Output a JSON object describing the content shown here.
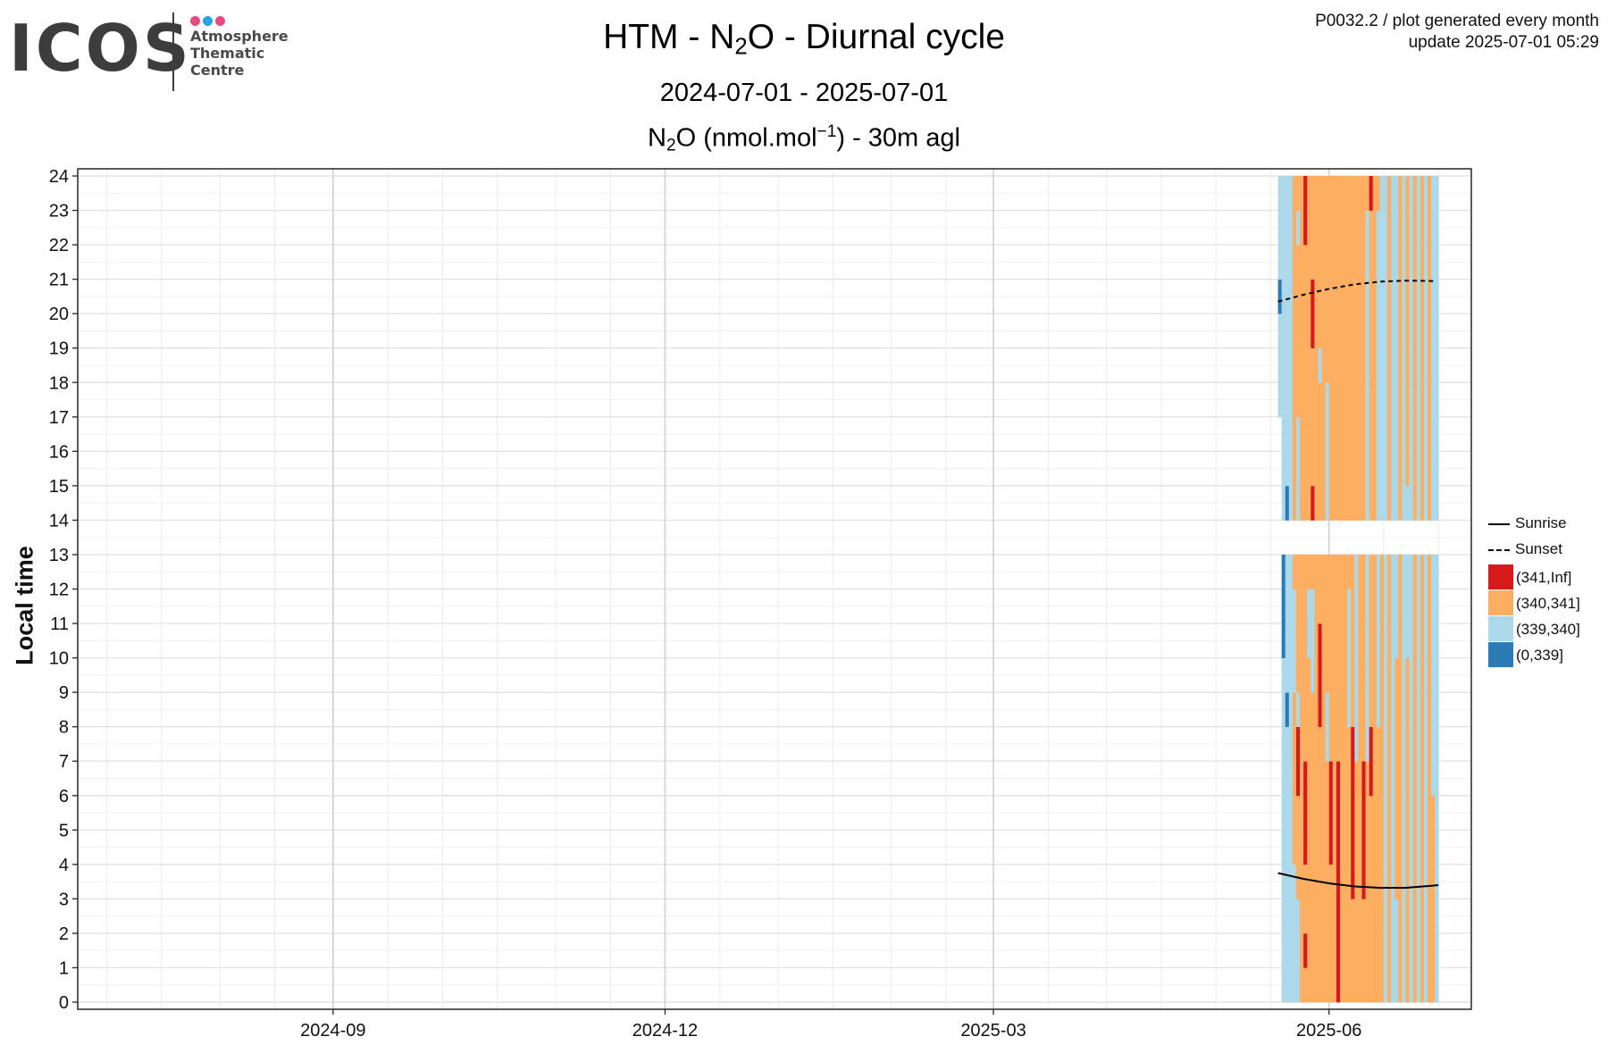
{
  "logo": {
    "wordmark": "ICOS",
    "subtitle": [
      "Atmosphere",
      "Thematic",
      "Centre"
    ],
    "dot_colors": [
      "#e84a7f",
      "#2aa3e0",
      "#e84a7f"
    ]
  },
  "meta": {
    "line1": "P0032.2 / plot generated every month",
    "line2": "update  2025-07-01 05:29"
  },
  "chart_data": {
    "type": "heatmap",
    "title": {
      "pre": "HTM - N",
      "sub": "2",
      "post": "O - Diurnal cycle"
    },
    "subtitle": "2024-07-01 - 2025-07-01",
    "panel_title": {
      "pre": "N",
      "sub": "2",
      "mid": "O (nmol.mol",
      "sup": "−1",
      "post": ") - 30m agl"
    },
    "ylabel": "Local time",
    "xlabel": "",
    "y_range": [
      0,
      24
    ],
    "y_ticks": [
      "0",
      "1",
      "2",
      "3",
      "4",
      "5",
      "6",
      "7",
      "8",
      "9",
      "10",
      "11",
      "12",
      "13",
      "14",
      "15",
      "16",
      "17",
      "18",
      "19",
      "20",
      "21",
      "22",
      "23",
      "24"
    ],
    "x_range": [
      "2024-06-23",
      "2025-07-10"
    ],
    "x_ticks": [
      {
        "date": "2024-09-01",
        "label": "2024-09"
      },
      {
        "date": "2024-12-01",
        "label": "2024-12"
      },
      {
        "date": "2025-03-01",
        "label": "2025-03"
      },
      {
        "date": "2025-06-01",
        "label": "2025-06"
      }
    ],
    "x_minor_ticks": [
      "2024-07-01",
      "2024-07-16",
      "2024-08-01",
      "2024-08-16",
      "2024-09-16",
      "2024-10-01",
      "2024-10-16",
      "2024-11-01",
      "2024-11-16",
      "2024-12-16",
      "2025-01-01",
      "2025-01-16",
      "2025-02-01",
      "2025-02-16",
      "2025-03-16",
      "2025-04-01",
      "2025-04-16",
      "2025-05-01",
      "2025-05-16",
      "2025-06-16",
      "2025-07-01"
    ],
    "grid": true,
    "legend_position": "right",
    "legend": {
      "lines": [
        {
          "name": "Sunrise",
          "style": "solid"
        },
        {
          "name": "Sunset",
          "style": "dashed"
        }
      ],
      "classes": [
        {
          "name": "(341,Inf]",
          "color": "#d7191c"
        },
        {
          "name": "(340,341]",
          "color": "#fdae61"
        },
        {
          "name": "(339,340]",
          "color": "#abd9e9"
        },
        {
          "name": "(0,339]",
          "color": "#2c7bb6"
        }
      ]
    },
    "data_start": "2025-05-18",
    "data_end": "2025-07-01",
    "missing_hours_all_days": [
      13
    ],
    "exceptions": [
      {
        "date": "2025-05-18",
        "hours": [
          20
        ],
        "class": "(0,339]"
      },
      {
        "date": "2025-05-19",
        "hours": [
          11,
          12
        ],
        "class": "(0,339]"
      },
      {
        "date": "2025-05-19",
        "hours": [
          10
        ],
        "class": "(0,339]"
      },
      {
        "date": "2025-05-20",
        "hours": [
          8
        ],
        "class": "(0,339]"
      },
      {
        "date": "2025-05-20",
        "hours": [
          14
        ],
        "class": "(0,339]"
      },
      {
        "date": "2025-05-21",
        "hours": [
          0,
          1,
          2,
          3,
          4,
          5,
          6,
          7,
          8,
          9,
          10,
          11,
          12,
          14,
          15,
          16,
          17,
          18,
          19,
          20
        ],
        "class": "(339,340]"
      },
      {
        "date": "2025-05-22",
        "hours": [
          4,
          5,
          6,
          7,
          8,
          12,
          14,
          15,
          16,
          17,
          18,
          19,
          20,
          21,
          22,
          23
        ],
        "class": "(340,341]"
      },
      {
        "date": "2025-05-23",
        "hours": [
          6,
          7
        ],
        "class": "(341,Inf]"
      },
      {
        "date": "2025-05-23",
        "hours": [
          3,
          4,
          5,
          9,
          10,
          11,
          12,
          17,
          18,
          19,
          20,
          21,
          23
        ],
        "class": "(340,341]"
      },
      {
        "date": "2025-05-24",
        "hours": [
          0,
          1,
          2,
          3,
          4,
          5,
          6,
          7,
          8,
          9,
          10,
          11,
          12,
          14,
          15,
          16,
          17,
          18,
          19,
          20,
          21,
          22,
          23
        ],
        "class": "(340,341]"
      },
      {
        "date": "2025-05-25",
        "hours": [
          1,
          4,
          5,
          6,
          22,
          23
        ],
        "class": "(341,Inf]"
      },
      {
        "date": "2025-05-25",
        "hours": [
          0,
          2,
          3,
          7,
          8,
          9,
          10,
          11,
          12,
          14,
          15,
          16,
          17,
          18,
          19,
          20,
          21
        ],
        "class": "(340,341]"
      },
      {
        "date": "2025-05-26",
        "hours": [
          0,
          1,
          2,
          3,
          4,
          5,
          6,
          7,
          8,
          9,
          12,
          14,
          15,
          16,
          17,
          18,
          19,
          20,
          21,
          22,
          23
        ],
        "class": "(340,341]"
      },
      {
        "date": "2025-05-27",
        "hours": [
          14,
          19,
          20
        ],
        "class": "(341,Inf]"
      },
      {
        "date": "2025-05-27",
        "hours": [
          0,
          1,
          2,
          3,
          4,
          5,
          6,
          7,
          8,
          12,
          15,
          16,
          17,
          18,
          21,
          22,
          23
        ],
        "class": "(340,341]"
      },
      {
        "date": "2025-05-28",
        "hours": [
          0,
          1,
          2,
          3,
          4,
          5,
          6,
          7,
          8,
          9,
          10,
          11,
          12,
          14,
          15,
          16,
          17,
          18,
          19,
          20,
          21,
          22,
          23
        ],
        "class": "(340,341]"
      },
      {
        "date": "2025-05-29",
        "hours": [
          8,
          9,
          10
        ],
        "class": "(341,Inf]"
      },
      {
        "date": "2025-05-29",
        "hours": [
          0,
          1,
          2,
          3,
          4,
          5,
          6,
          7,
          11,
          12,
          14,
          15,
          16,
          17,
          19,
          20,
          21,
          22,
          23
        ],
        "class": "(340,341]"
      },
      {
        "date": "2025-05-30",
        "hours": [
          0,
          1,
          2,
          3,
          4,
          5,
          6,
          7,
          8,
          9,
          10,
          11,
          12,
          14,
          15,
          16,
          17,
          18,
          19,
          20,
          21,
          22,
          23
        ],
        "class": "(340,341]"
      },
      {
        "date": "2025-05-31",
        "hours": [
          0,
          1,
          2,
          3,
          4,
          5,
          6,
          9,
          10,
          11,
          12,
          18,
          19,
          20,
          21,
          22,
          23
        ],
        "class": "(340,341]"
      },
      {
        "date": "2025-06-01",
        "hours": [
          4,
          5,
          6
        ],
        "class": "(341,Inf]"
      },
      {
        "date": "2025-06-01",
        "hours": [
          0,
          1,
          2,
          3,
          7,
          8,
          9,
          10,
          11,
          12,
          14,
          15,
          16,
          17,
          18,
          19,
          20,
          21,
          22,
          23
        ],
        "class": "(340,341]"
      },
      {
        "date": "2025-06-02",
        "hours": [
          0,
          1,
          2,
          3,
          4,
          5,
          6,
          7,
          8,
          9,
          10,
          11,
          12,
          14,
          15,
          16,
          17,
          18,
          19,
          20,
          21,
          22,
          23
        ],
        "class": "(340,341]"
      },
      {
        "date": "2025-06-03",
        "hours": [
          0,
          1,
          2,
          3,
          4,
          5,
          6
        ],
        "class": "(341,Inf]"
      },
      {
        "date": "2025-06-03",
        "hours": [
          7,
          8,
          9,
          10,
          11,
          12,
          14,
          15,
          16,
          17,
          18,
          19,
          20,
          21,
          22,
          23
        ],
        "class": "(340,341]"
      },
      {
        "date": "2025-06-04",
        "hours": [
          0,
          1,
          2,
          3,
          4,
          5,
          6,
          7,
          8,
          9,
          10,
          11,
          12,
          14,
          15,
          16,
          17,
          18,
          19,
          20,
          21,
          22,
          23
        ],
        "class": "(340,341]"
      },
      {
        "date": "2025-06-05",
        "hours": [
          0,
          1,
          2,
          3,
          4,
          5,
          6,
          7,
          8,
          9,
          10,
          11,
          12,
          14,
          15,
          16,
          17,
          18,
          19,
          20,
          21,
          22,
          23
        ],
        "class": "(340,341]"
      },
      {
        "date": "2025-06-06",
        "hours": [
          0,
          1,
          2,
          3,
          4,
          5,
          6,
          7,
          12,
          14,
          15,
          16,
          17,
          18,
          19,
          20,
          21,
          22,
          23
        ],
        "class": "(340,341]"
      },
      {
        "date": "2025-06-07",
        "hours": [
          3,
          4,
          5,
          6,
          7
        ],
        "class": "(341,Inf]"
      },
      {
        "date": "2025-06-07",
        "hours": [
          0,
          1,
          2,
          8,
          9,
          10,
          11,
          12,
          14,
          15,
          16,
          17,
          18,
          19,
          20,
          21,
          22,
          23
        ],
        "class": "(340,341]"
      },
      {
        "date": "2025-06-08",
        "hours": [
          0,
          1,
          2,
          3,
          4,
          5,
          6,
          14,
          15,
          16,
          17,
          18,
          19,
          20,
          21,
          22,
          23
        ],
        "class": "(340,341]"
      },
      {
        "date": "2025-06-09",
        "hours": [
          0,
          1,
          2,
          3,
          4,
          5,
          6,
          7,
          8,
          9,
          10,
          11,
          12,
          14,
          15,
          16,
          17,
          18,
          19,
          20,
          21,
          22,
          23
        ],
        "class": "(340,341]"
      },
      {
        "date": "2025-06-10",
        "hours": [
          3,
          4,
          5,
          6
        ],
        "class": "(341,Inf]"
      },
      {
        "date": "2025-06-10",
        "hours": [
          0,
          1,
          2,
          7,
          8,
          9,
          10,
          11,
          12,
          14,
          15,
          16,
          17,
          18,
          19,
          20,
          21,
          22,
          23
        ],
        "class": "(340,341]"
      },
      {
        "date": "2025-06-11",
        "hours": [
          0,
          1,
          2,
          3,
          4,
          5,
          6,
          23
        ],
        "class": "(340,341]"
      },
      {
        "date": "2025-06-12",
        "hours": [
          6,
          7,
          23
        ],
        "class": "(341,Inf]"
      },
      {
        "date": "2025-06-12",
        "hours": [
          0,
          1,
          2,
          3,
          4,
          5,
          8,
          9,
          10,
          11,
          12,
          14,
          15,
          16,
          17,
          18,
          19,
          20,
          21,
          22
        ],
        "class": "(340,341]"
      },
      {
        "date": "2025-06-13",
        "hours": [
          0,
          1,
          2,
          3,
          4,
          5,
          6,
          7,
          8,
          9,
          10,
          11,
          12,
          14,
          15,
          16,
          17,
          18,
          19,
          20,
          21,
          22,
          23
        ],
        "class": "(340,341]"
      },
      {
        "date": "2025-06-14",
        "hours": [
          0,
          1,
          2,
          3,
          4,
          5,
          6,
          7,
          23
        ],
        "class": "(340,341]"
      },
      {
        "date": "2025-06-15",
        "hours": [
          0,
          1,
          2,
          3,
          4,
          5,
          6,
          7,
          8,
          9,
          10,
          11,
          12
        ],
        "class": "(340,341]"
      },
      {
        "date": "2025-06-17",
        "hours": [
          0,
          1,
          2,
          3,
          4,
          5,
          6,
          7,
          8,
          9,
          10,
          11,
          12,
          14,
          15,
          16,
          17,
          18,
          19,
          20,
          21,
          22,
          23
        ],
        "class": "(340,341]"
      },
      {
        "date": "2025-06-19",
        "hours": [
          3,
          4,
          5,
          6,
          7,
          8,
          9
        ],
        "class": "(340,341]"
      },
      {
        "date": "2025-06-20",
        "hours": [
          0,
          1,
          2,
          3,
          4,
          5,
          6,
          7,
          8,
          9,
          10,
          11,
          12,
          14,
          15,
          16,
          17,
          18,
          19,
          20,
          21,
          22,
          23
        ],
        "class": "(340,341]"
      },
      {
        "date": "2025-06-22",
        "hours": [
          0,
          1,
          2,
          3,
          4,
          5,
          6,
          7,
          8,
          9,
          15,
          16,
          17,
          18,
          19,
          20,
          21,
          22,
          23
        ],
        "class": "(340,341]"
      },
      {
        "date": "2025-06-24",
        "hours": [
          0,
          1,
          2,
          3,
          4,
          5,
          6,
          7,
          8,
          9,
          10,
          11,
          12,
          14,
          15,
          16,
          17,
          18,
          19,
          20,
          21,
          22,
          23
        ],
        "class": "(340,341]"
      },
      {
        "date": "2025-06-26",
        "hours": [
          0,
          1,
          2,
          3,
          4,
          5,
          6,
          7,
          8,
          9,
          10,
          11,
          12,
          14,
          15,
          16,
          17,
          18,
          19,
          20,
          21,
          22,
          23
        ],
        "class": "(340,341]"
      },
      {
        "date": "2025-06-28",
        "hours": [
          0,
          1,
          2,
          3,
          4,
          5,
          6,
          7,
          8,
          9,
          10,
          11,
          12,
          14,
          15,
          16,
          17,
          18,
          19,
          20,
          21,
          22,
          23
        ],
        "class": "(340,341]"
      },
      {
        "date": "2025-06-29",
        "hours": [
          0,
          1,
          2,
          3,
          4,
          5
        ],
        "class": "(340,341]"
      }
    ],
    "default_class": "(339,340]",
    "sunrise": [
      {
        "date": "2025-05-18",
        "hour": 3.75
      },
      {
        "date": "2025-05-25",
        "hour": 3.58
      },
      {
        "date": "2025-06-01",
        "hour": 3.45
      },
      {
        "date": "2025-06-08",
        "hour": 3.36
      },
      {
        "date": "2025-06-15",
        "hour": 3.32
      },
      {
        "date": "2025-06-22",
        "hour": 3.32
      },
      {
        "date": "2025-06-29",
        "hour": 3.38
      },
      {
        "date": "2025-07-01",
        "hour": 3.4
      }
    ],
    "sunset": [
      {
        "date": "2025-05-18",
        "hour": 20.35
      },
      {
        "date": "2025-05-25",
        "hour": 20.55
      },
      {
        "date": "2025-06-01",
        "hour": 20.72
      },
      {
        "date": "2025-06-08",
        "hour": 20.85
      },
      {
        "date": "2025-06-15",
        "hour": 20.93
      },
      {
        "date": "2025-06-22",
        "hour": 20.96
      },
      {
        "date": "2025-06-29",
        "hour": 20.95
      },
      {
        "date": "2025-06-30",
        "hour": 20.94
      }
    ]
  }
}
